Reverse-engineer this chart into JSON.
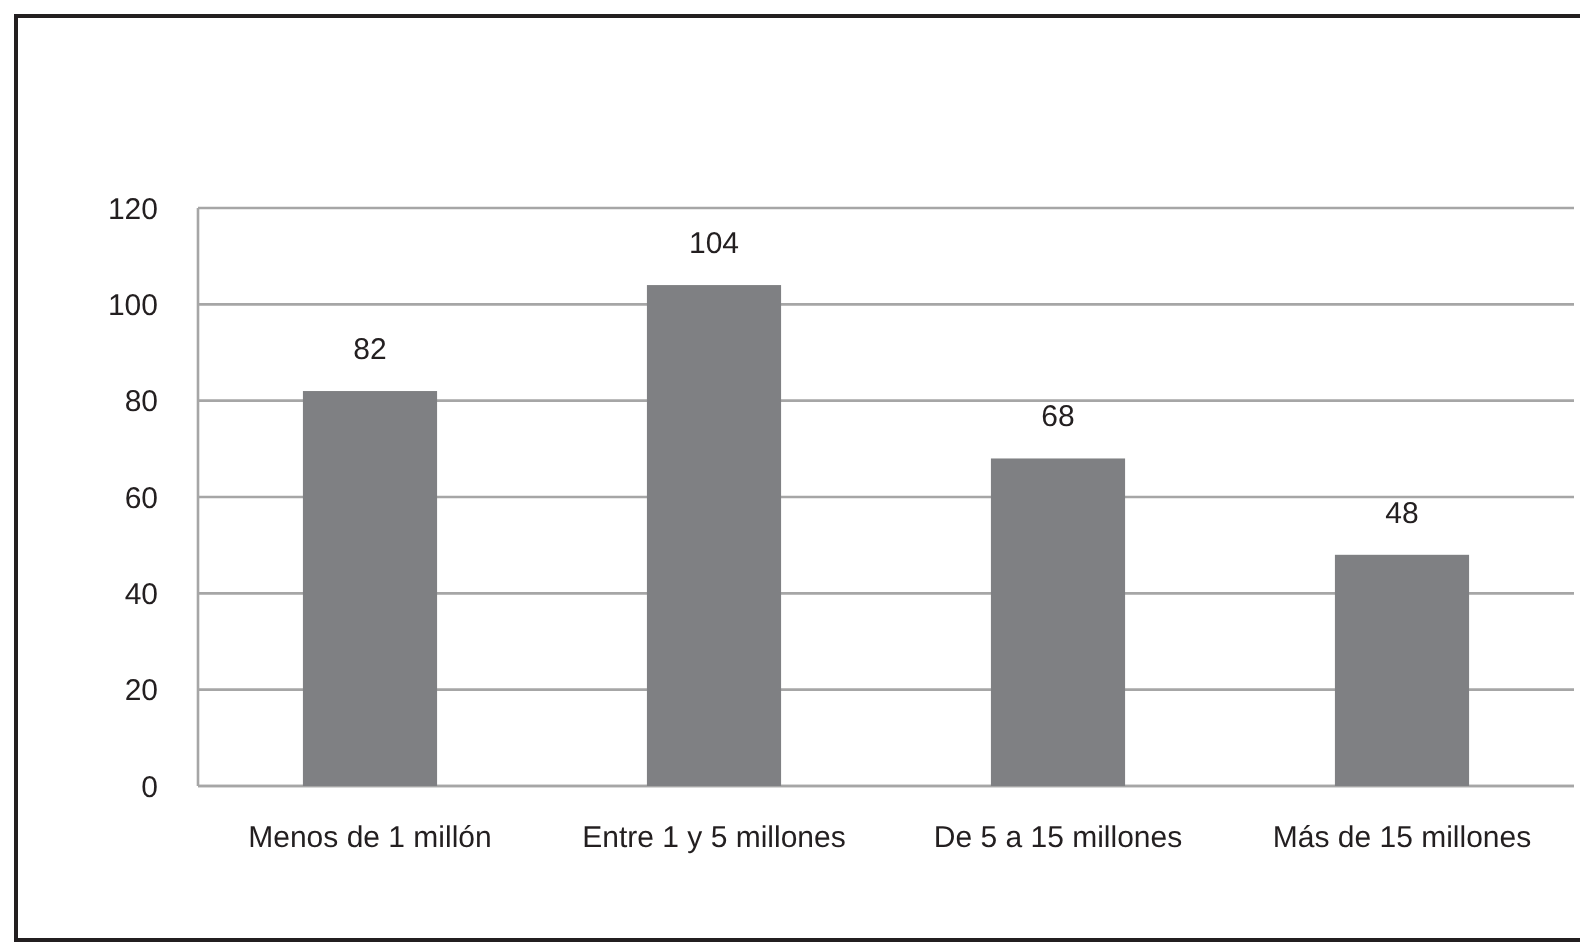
{
  "chart_data": {
    "type": "bar",
    "categories": [
      "Menos de 1 millón",
      "Entre 1 y 5 millones",
      "De 5 a 15 millones",
      "Más de 15 millones"
    ],
    "values": [
      82,
      104,
      68,
      48
    ],
    "color": "#7f8083",
    "ylim": [
      0,
      120
    ],
    "yticks": [
      0,
      20,
      40,
      60,
      80,
      100,
      120
    ],
    "grid": "y",
    "data_labels": true
  }
}
